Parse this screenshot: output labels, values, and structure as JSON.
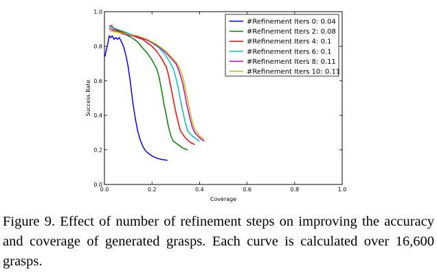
{
  "chart_data": {
    "type": "line",
    "xlabel": "Coverage",
    "ylabel": "Success Rate",
    "xlim": [
      0.0,
      1.0
    ],
    "ylim": [
      0.0,
      1.0
    ],
    "x_ticks": [
      "0.0",
      "0.2",
      "0.4",
      "0.6",
      "0.8",
      "1.0"
    ],
    "y_ticks": [
      "0.0",
      "0.2",
      "0.4",
      "0.6",
      "0.8",
      "1.0"
    ],
    "grid": false,
    "legend_position": "top-right",
    "series": [
      {
        "name": "#Refinement Iters 0: 0.04",
        "color": "#0000ff",
        "points": [
          [
            0.002,
            0.74
          ],
          [
            0.008,
            0.78
          ],
          [
            0.015,
            0.82
          ],
          [
            0.02,
            0.86
          ],
          [
            0.027,
            0.85
          ],
          [
            0.033,
            0.86
          ],
          [
            0.04,
            0.84
          ],
          [
            0.047,
            0.85
          ],
          [
            0.055,
            0.84
          ],
          [
            0.062,
            0.85
          ],
          [
            0.07,
            0.83
          ],
          [
            0.08,
            0.8
          ],
          [
            0.09,
            0.75
          ],
          [
            0.1,
            0.68
          ],
          [
            0.11,
            0.58
          ],
          [
            0.12,
            0.47
          ],
          [
            0.13,
            0.38
          ],
          [
            0.14,
            0.31
          ],
          [
            0.15,
            0.26
          ],
          [
            0.16,
            0.225
          ],
          [
            0.17,
            0.2
          ],
          [
            0.18,
            0.185
          ],
          [
            0.2,
            0.165
          ],
          [
            0.22,
            0.152
          ],
          [
            0.24,
            0.145
          ],
          [
            0.265,
            0.14
          ]
        ]
      },
      {
        "name": "#Refinement Iters 2: 0.08",
        "color": "#008000",
        "points": [
          [
            0.02,
            0.915
          ],
          [
            0.03,
            0.91
          ],
          [
            0.04,
            0.9
          ],
          [
            0.06,
            0.885
          ],
          [
            0.08,
            0.875
          ],
          [
            0.1,
            0.86
          ],
          [
            0.12,
            0.845
          ],
          [
            0.14,
            0.825
          ],
          [
            0.16,
            0.79
          ],
          [
            0.18,
            0.76
          ],
          [
            0.2,
            0.72
          ],
          [
            0.22,
            0.67
          ],
          [
            0.23,
            0.62
          ],
          [
            0.24,
            0.55
          ],
          [
            0.25,
            0.47
          ],
          [
            0.26,
            0.4
          ],
          [
            0.27,
            0.33
          ],
          [
            0.28,
            0.28
          ],
          [
            0.29,
            0.25
          ],
          [
            0.31,
            0.23
          ],
          [
            0.33,
            0.21
          ],
          [
            0.35,
            0.2
          ]
        ]
      },
      {
        "name": "#Refinement Iters 4: 0.1",
        "color": "#ff0000",
        "points": [
          [
            0.02,
            0.915
          ],
          [
            0.03,
            0.92
          ],
          [
            0.04,
            0.9
          ],
          [
            0.06,
            0.89
          ],
          [
            0.08,
            0.88
          ],
          [
            0.1,
            0.87
          ],
          [
            0.12,
            0.86
          ],
          [
            0.14,
            0.85
          ],
          [
            0.16,
            0.84
          ],
          [
            0.18,
            0.82
          ],
          [
            0.2,
            0.8
          ],
          [
            0.22,
            0.77
          ],
          [
            0.24,
            0.73
          ],
          [
            0.26,
            0.68
          ],
          [
            0.27,
            0.63
          ],
          [
            0.28,
            0.56
          ],
          [
            0.29,
            0.49
          ],
          [
            0.3,
            0.42
          ],
          [
            0.31,
            0.36
          ],
          [
            0.32,
            0.31
          ],
          [
            0.34,
            0.27
          ],
          [
            0.36,
            0.245
          ],
          [
            0.38,
            0.23
          ]
        ]
      },
      {
        "name": "#Refinement Iters 6: 0.1",
        "color": "#00bfbf",
        "points": [
          [
            0.02,
            0.915
          ],
          [
            0.03,
            0.91
          ],
          [
            0.05,
            0.9
          ],
          [
            0.07,
            0.89
          ],
          [
            0.09,
            0.88
          ],
          [
            0.11,
            0.87
          ],
          [
            0.13,
            0.86
          ],
          [
            0.15,
            0.85
          ],
          [
            0.17,
            0.84
          ],
          [
            0.19,
            0.83
          ],
          [
            0.21,
            0.81
          ],
          [
            0.23,
            0.79
          ],
          [
            0.25,
            0.76
          ],
          [
            0.27,
            0.72
          ],
          [
            0.29,
            0.67
          ],
          [
            0.3,
            0.62
          ],
          [
            0.31,
            0.56
          ],
          [
            0.32,
            0.49
          ],
          [
            0.33,
            0.42
          ],
          [
            0.34,
            0.36
          ],
          [
            0.35,
            0.31
          ],
          [
            0.37,
            0.28
          ],
          [
            0.39,
            0.26
          ],
          [
            0.4,
            0.25
          ]
        ]
      },
      {
        "name": "#Refinement Iters 8: 0.11",
        "color": "#bf00bf",
        "points": [
          [
            0.02,
            0.905
          ],
          [
            0.04,
            0.89
          ],
          [
            0.06,
            0.88
          ],
          [
            0.08,
            0.87
          ],
          [
            0.1,
            0.865
          ],
          [
            0.12,
            0.86
          ],
          [
            0.14,
            0.855
          ],
          [
            0.16,
            0.845
          ],
          [
            0.18,
            0.835
          ],
          [
            0.2,
            0.82
          ],
          [
            0.22,
            0.805
          ],
          [
            0.24,
            0.785
          ],
          [
            0.26,
            0.76
          ],
          [
            0.28,
            0.73
          ],
          [
            0.3,
            0.7
          ],
          [
            0.31,
            0.67
          ],
          [
            0.32,
            0.63
          ],
          [
            0.33,
            0.58
          ],
          [
            0.34,
            0.51
          ],
          [
            0.35,
            0.44
          ],
          [
            0.36,
            0.38
          ],
          [
            0.37,
            0.33
          ],
          [
            0.38,
            0.3
          ],
          [
            0.4,
            0.27
          ],
          [
            0.42,
            0.25
          ]
        ]
      },
      {
        "name": "#Refinement Iters 10: 0.11",
        "color": "#bfbf00",
        "points": [
          [
            0.02,
            0.89
          ],
          [
            0.04,
            0.885
          ],
          [
            0.06,
            0.88
          ],
          [
            0.08,
            0.875
          ],
          [
            0.1,
            0.87
          ],
          [
            0.12,
            0.865
          ],
          [
            0.14,
            0.86
          ],
          [
            0.16,
            0.85
          ],
          [
            0.18,
            0.84
          ],
          [
            0.2,
            0.825
          ],
          [
            0.22,
            0.81
          ],
          [
            0.24,
            0.79
          ],
          [
            0.26,
            0.77
          ],
          [
            0.28,
            0.74
          ],
          [
            0.3,
            0.71
          ],
          [
            0.31,
            0.69
          ],
          [
            0.32,
            0.66
          ],
          [
            0.33,
            0.62
          ],
          [
            0.34,
            0.56
          ],
          [
            0.35,
            0.49
          ],
          [
            0.36,
            0.42
          ],
          [
            0.37,
            0.36
          ],
          [
            0.38,
            0.32
          ],
          [
            0.4,
            0.28
          ],
          [
            0.42,
            0.26
          ]
        ]
      }
    ]
  },
  "caption": "Figure 9. Effect of number of refinement steps on improving the accuracy and coverage of generated grasps. Each curve is calculated over 16,600 grasps."
}
